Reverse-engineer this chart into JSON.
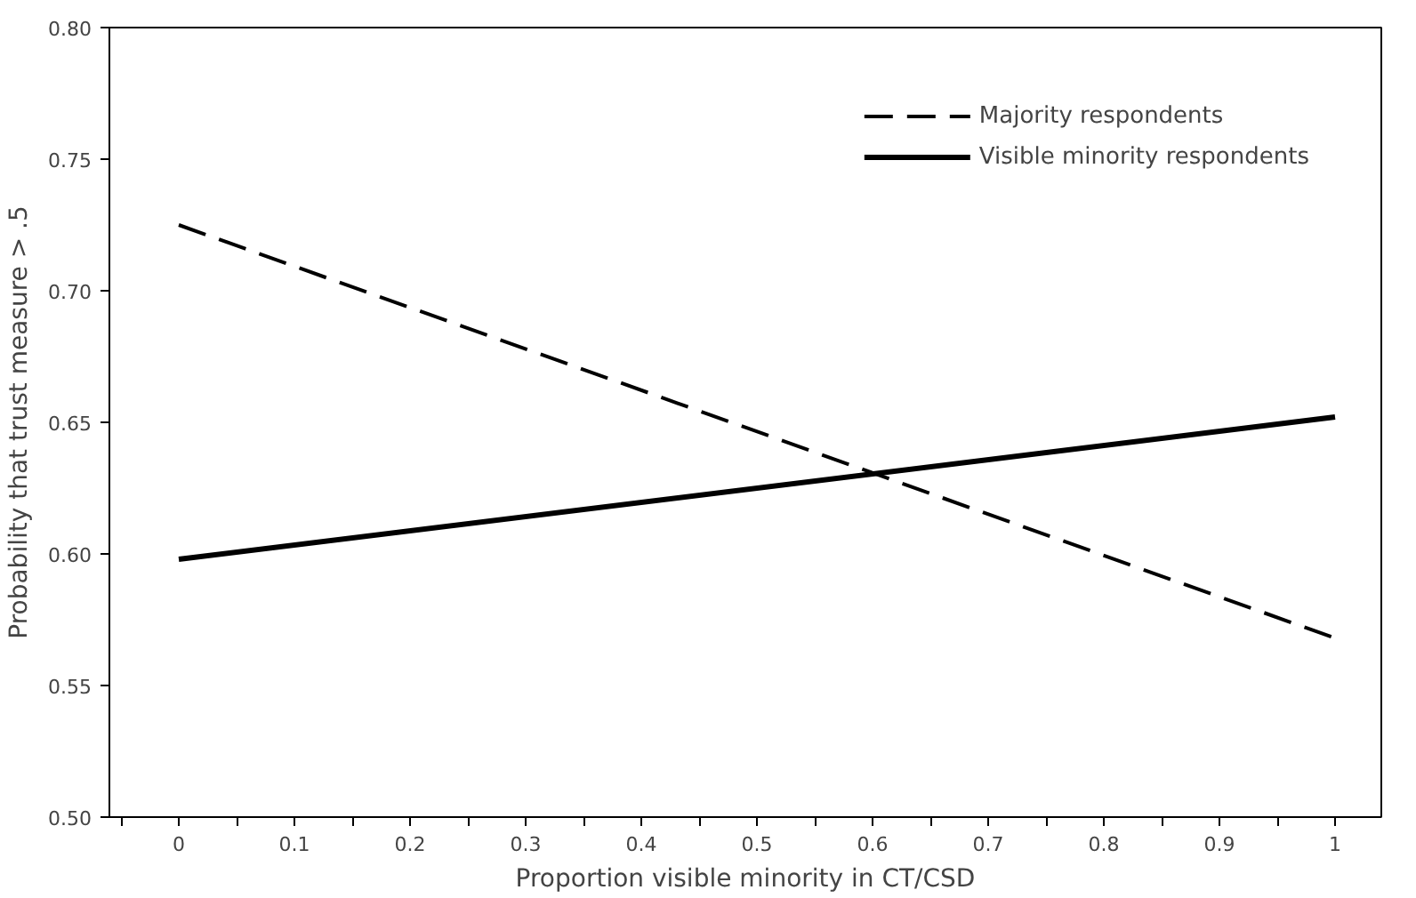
{
  "chart_data": {
    "type": "line",
    "xlabel": "Proportion visible minority in CT/CSD",
    "ylabel": "Probability that trust measure > .5",
    "x": [
      0,
      1
    ],
    "series": [
      {
        "name": "Majority respondents",
        "color": "#000000",
        "values": [
          0.725,
          0.568
        ],
        "line_style": "dashed"
      },
      {
        "name": "Visible minority respondents",
        "color": "#000000",
        "values": [
          0.598,
          0.652
        ],
        "line_style": "solid"
      }
    ],
    "xlim": [
      -0.06,
      1.04
    ],
    "ylim": [
      0.5,
      0.8
    ],
    "xticks": [
      0,
      0.1,
      0.2,
      0.3,
      0.4,
      0.5,
      0.6,
      0.7,
      0.8,
      0.9,
      1,
      {
        "value": -0.05,
        "label": null
      },
      {
        "value": 0.05,
        "label": null
      },
      {
        "value": 0.15,
        "label": null
      },
      {
        "value": 0.25,
        "label": null
      },
      {
        "value": 0.35,
        "label": null
      },
      {
        "value": 0.45,
        "label": null
      },
      {
        "value": 0.55,
        "label": null
      },
      {
        "value": 0.65,
        "label": null
      },
      {
        "value": 0.75,
        "label": null
      },
      {
        "value": 0.85,
        "label": null
      },
      {
        "value": 0.95,
        "label": null
      }
    ],
    "yticks": [
      {
        "value": 0.5,
        "label": "0.50"
      },
      {
        "value": 0.55,
        "label": "0.55"
      },
      {
        "value": 0.6,
        "label": "0.60"
      },
      {
        "value": 0.65,
        "label": "0.65"
      },
      {
        "value": 0.7,
        "label": "0.70"
      },
      {
        "value": 0.75,
        "label": "0.75"
      },
      {
        "value": 0.8,
        "label": "0.80"
      }
    ],
    "grid": false,
    "legend": "top right",
    "marker": "none"
  }
}
